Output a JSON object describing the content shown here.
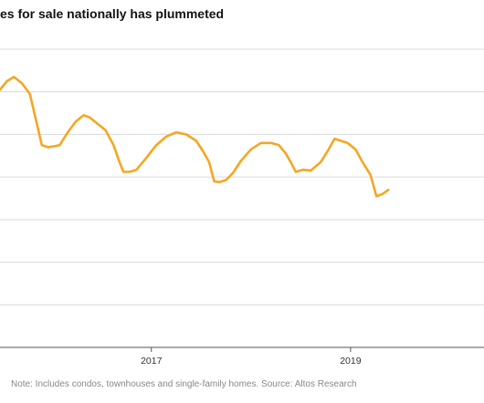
{
  "chart_data": {
    "type": "line",
    "title": "es for sale nationally has plummeted",
    "note": "Note: Includes condos, townhouses and single-family homes. Source: Altos Research",
    "x_ticks": [
      {
        "label": "2017",
        "x": 2017.0
      },
      {
        "label": "2019",
        "x": 2019.0
      }
    ],
    "xlim": [
      2015.48,
      2020.34
    ],
    "ylim": [
      0,
      7
    ],
    "grid": true,
    "series_color": "#f5a623",
    "series": [
      {
        "values": [
          [
            2015.48,
            6.05
          ],
          [
            2015.55,
            6.25
          ],
          [
            2015.62,
            6.35
          ],
          [
            2015.7,
            6.2
          ],
          [
            2015.78,
            5.95
          ],
          [
            2015.84,
            5.35
          ],
          [
            2015.9,
            4.75
          ],
          [
            2015.96,
            4.7
          ],
          [
            2016.02,
            4.72
          ],
          [
            2016.08,
            4.75
          ],
          [
            2016.16,
            5.05
          ],
          [
            2016.24,
            5.3
          ],
          [
            2016.32,
            5.45
          ],
          [
            2016.38,
            5.4
          ],
          [
            2016.46,
            5.25
          ],
          [
            2016.54,
            5.1
          ],
          [
            2016.62,
            4.75
          ],
          [
            2016.68,
            4.35
          ],
          [
            2016.72,
            4.12
          ],
          [
            2016.78,
            4.12
          ],
          [
            2016.85,
            4.17
          ],
          [
            2016.95,
            4.45
          ],
          [
            2017.05,
            4.75
          ],
          [
            2017.15,
            4.95
          ],
          [
            2017.25,
            5.05
          ],
          [
            2017.35,
            5.0
          ],
          [
            2017.45,
            4.85
          ],
          [
            2017.52,
            4.6
          ],
          [
            2017.58,
            4.35
          ],
          [
            2017.63,
            3.9
          ],
          [
            2017.68,
            3.88
          ],
          [
            2017.75,
            3.93
          ],
          [
            2017.82,
            4.1
          ],
          [
            2017.9,
            4.38
          ],
          [
            2018.0,
            4.65
          ],
          [
            2018.1,
            4.8
          ],
          [
            2018.2,
            4.8
          ],
          [
            2018.28,
            4.75
          ],
          [
            2018.35,
            4.55
          ],
          [
            2018.4,
            4.35
          ],
          [
            2018.45,
            4.12
          ],
          [
            2018.52,
            4.17
          ],
          [
            2018.6,
            4.15
          ],
          [
            2018.7,
            4.35
          ],
          [
            2018.78,
            4.65
          ],
          [
            2018.84,
            4.9
          ],
          [
            2018.9,
            4.85
          ],
          [
            2018.97,
            4.8
          ],
          [
            2019.05,
            4.65
          ],
          [
            2019.12,
            4.35
          ],
          [
            2019.2,
            4.05
          ],
          [
            2019.26,
            3.55
          ],
          [
            2019.32,
            3.6
          ],
          [
            2019.38,
            3.7
          ]
        ]
      }
    ]
  }
}
